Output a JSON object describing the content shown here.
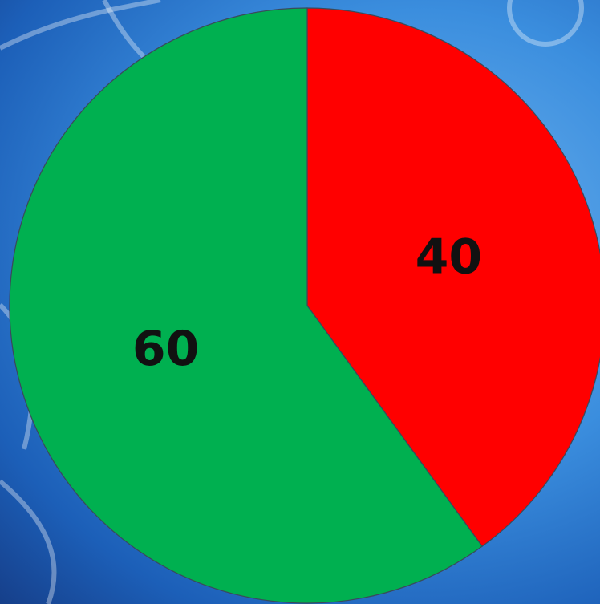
{
  "chart_data": {
    "type": "pie",
    "values": [
      40,
      60
    ],
    "colors": [
      "#ff0000",
      "#00b050"
    ]
  }
}
